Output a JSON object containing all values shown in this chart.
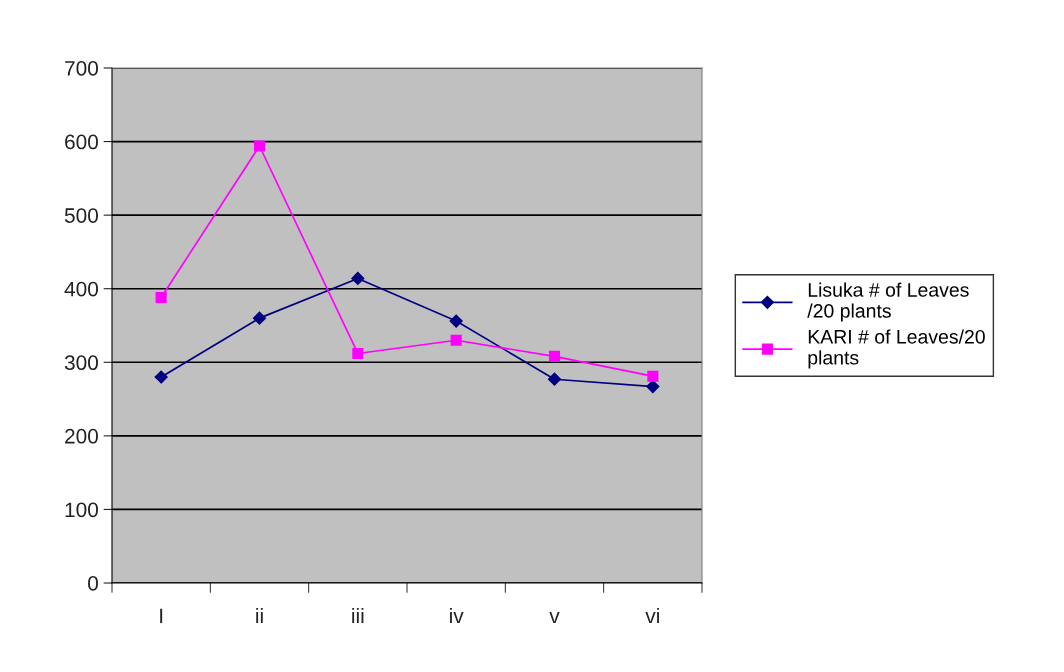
{
  "chart_data": {
    "type": "line",
    "categories": [
      "I",
      "ii",
      "iii",
      "iv",
      "v",
      "vi"
    ],
    "series": [
      {
        "name": "Lisuka # of Leaves\n/20 plants",
        "color": "#000080",
        "marker": "diamond",
        "values": [
          280,
          360,
          414,
          356,
          277,
          267
        ]
      },
      {
        "name": "KARI # of Leaves/20\nplants",
        "color": "#ff00ff",
        "marker": "square",
        "values": [
          388,
          594,
          312,
          330,
          308,
          281
        ]
      }
    ],
    "ylim": [
      0,
      700
    ],
    "yticks": [
      0,
      100,
      200,
      300,
      400,
      500,
      600,
      700
    ],
    "grid": "y",
    "legend": "right",
    "line_style": "solid"
  }
}
